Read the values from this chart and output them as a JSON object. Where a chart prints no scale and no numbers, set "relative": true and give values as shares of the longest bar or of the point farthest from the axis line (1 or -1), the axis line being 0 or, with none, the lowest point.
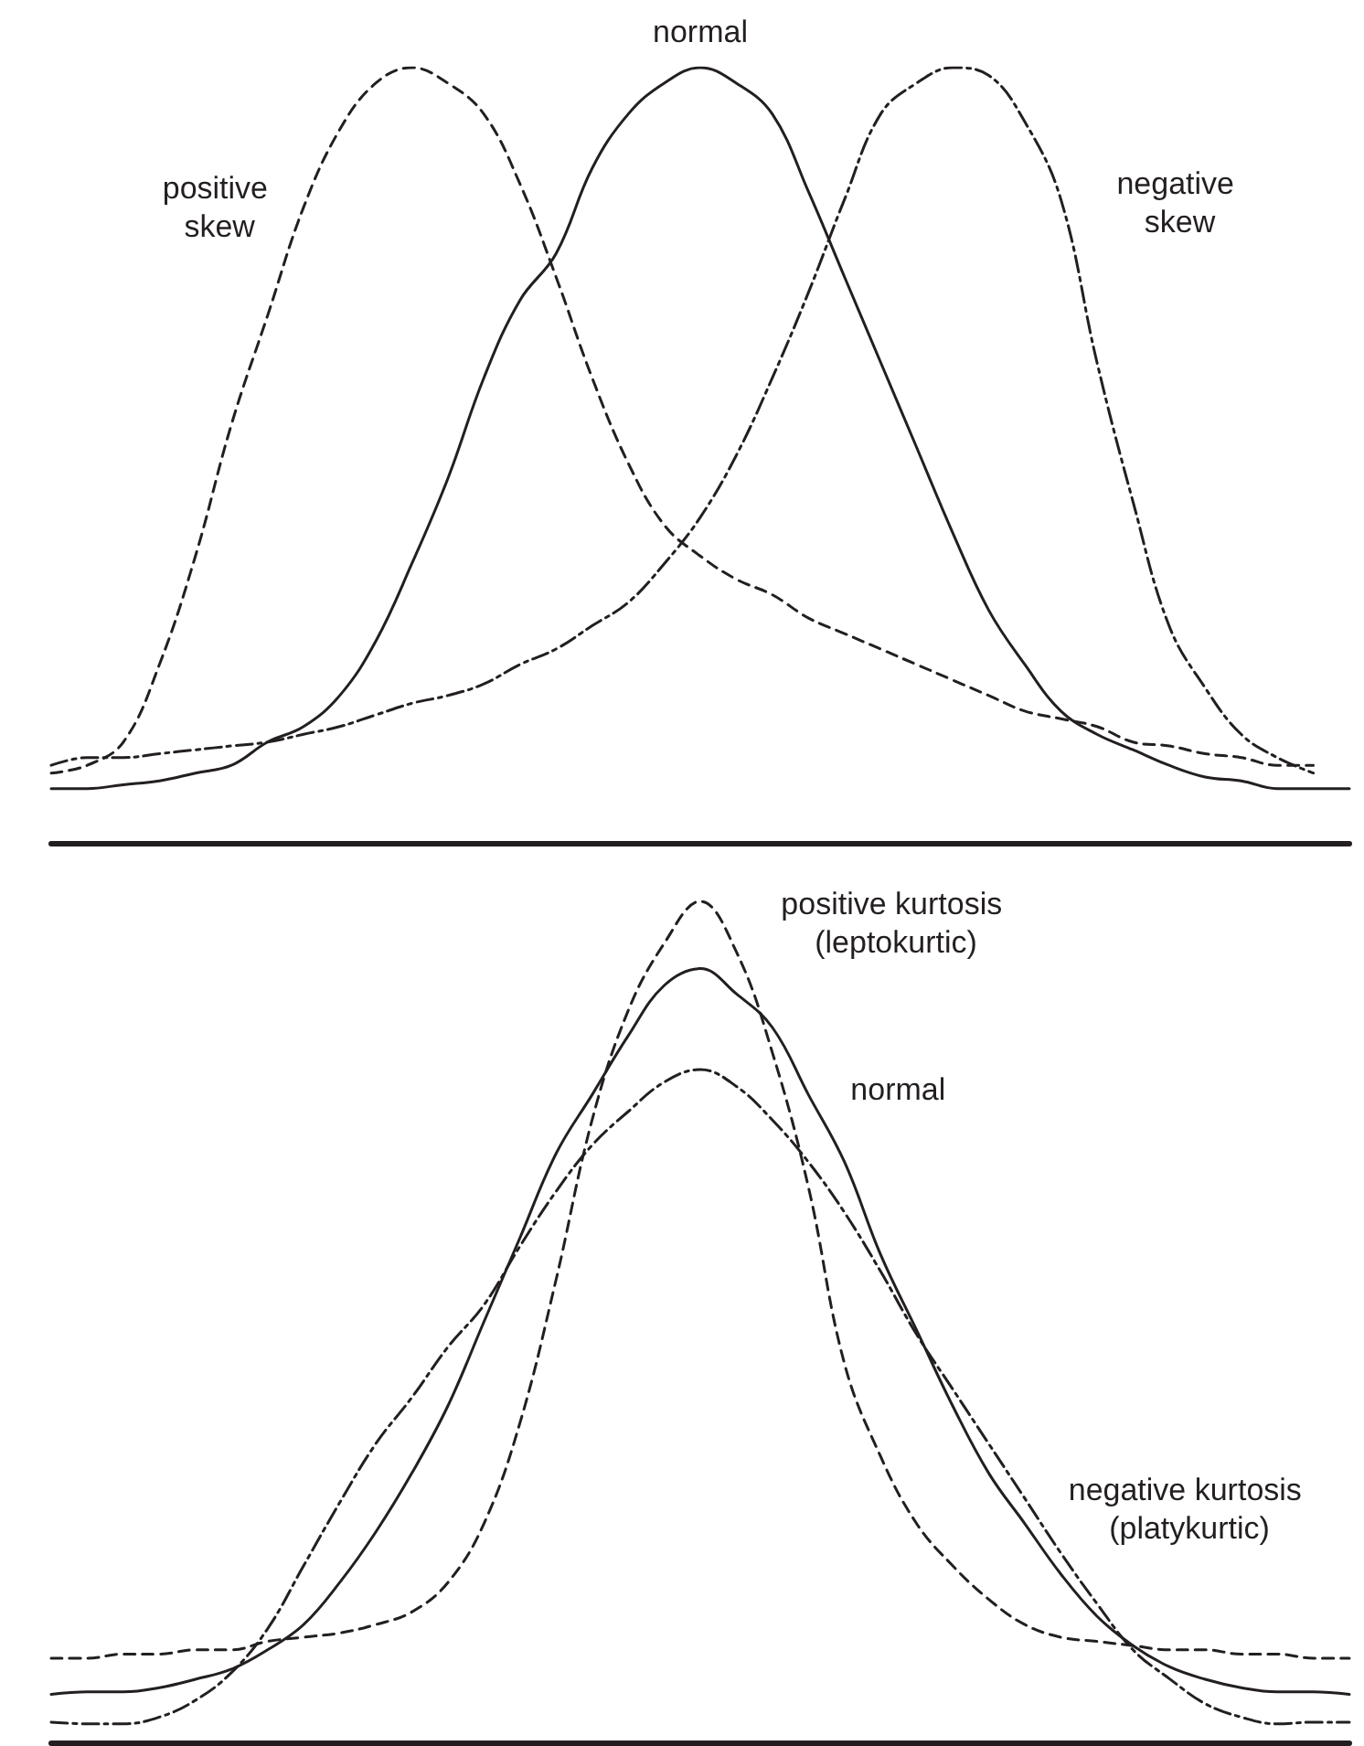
{
  "chart_data": [
    {
      "type": "line",
      "relative": true,
      "legend": false,
      "grid": false,
      "marker": "none",
      "tick_labels": false,
      "categories": [
        null,
        null,
        null,
        null,
        null,
        null,
        null,
        null,
        null,
        null,
        null,
        null,
        null,
        null,
        null,
        null,
        null,
        null,
        null,
        null,
        null,
        null,
        null,
        null,
        null,
        null,
        null,
        null,
        null,
        null,
        null,
        null,
        null,
        null,
        null,
        null,
        null
      ],
      "series": [
        {
          "name": "normal",
          "color": "#231f20",
          "line_style": "solid",
          "values": [
            0.07,
            0.07,
            0.075,
            0.08,
            0.09,
            0.1,
            0.13,
            0.15,
            0.19,
            0.26,
            0.36,
            0.47,
            0.6,
            0.7,
            0.76,
            0.87,
            0.94,
            0.98,
            1,
            0.98,
            0.94,
            0.84,
            0.73,
            0.62,
            0.51,
            0.4,
            0.3,
            0.23,
            0.17,
            0.14,
            0.12,
            0.1,
            0.085,
            0.08,
            0.07,
            0.07,
            0.07
          ]
        },
        {
          "name": "positive skew",
          "color": "#231f20",
          "line_style": "dashed",
          "values": [
            0.09,
            0.1,
            0.13,
            0.23,
            0.37,
            0.54,
            0.68,
            0.82,
            0.92,
            0.98,
            1,
            0.98,
            0.94,
            0.85,
            0.73,
            0.6,
            0.49,
            0.41,
            0.37,
            0.34,
            0.32,
            0.29,
            0.27,
            0.25,
            0.23,
            0.21,
            0.19,
            0.17,
            0.16,
            0.15,
            0.13,
            0.125,
            0.115,
            0.11,
            0.1,
            0.1,
            null
          ]
        },
        {
          "name": "negative skew",
          "color": "#231f20",
          "line_style": "dashdot",
          "values": [
            0.1,
            0.11,
            0.11,
            0.115,
            0.12,
            0.125,
            0.13,
            0.14,
            0.15,
            0.165,
            0.18,
            0.19,
            0.205,
            0.23,
            0.25,
            0.28,
            0.31,
            0.36,
            0.42,
            0.5,
            0.6,
            0.71,
            0.83,
            0.94,
            0.98,
            1,
            0.99,
            0.93,
            0.83,
            0.62,
            0.44,
            0.28,
            0.2,
            0.14,
            0.11,
            0.09,
            null
          ]
        }
      ]
    },
    {
      "type": "line",
      "relative": true,
      "legend": false,
      "grid": false,
      "marker": "none",
      "tick_labels": false,
      "categories": [
        null,
        null,
        null,
        null,
        null,
        null,
        null,
        null,
        null,
        null,
        null,
        null,
        null,
        null,
        null,
        null,
        null,
        null,
        null,
        null,
        null,
        null,
        null,
        null,
        null,
        null,
        null,
        null,
        null,
        null,
        null,
        null,
        null,
        null,
        null,
        null,
        null
      ],
      "series": [
        {
          "name": "normal",
          "color": "#231f20",
          "line_style": "solid",
          "values": [
            0.057,
            0.06,
            0.06,
            0.065,
            0.075,
            0.087,
            0.11,
            0.14,
            0.19,
            0.25,
            0.32,
            0.4,
            0.5,
            0.6,
            0.7,
            0.77,
            0.84,
            0.9,
            0.92,
            0.89,
            0.85,
            0.77,
            0.69,
            0.58,
            0.49,
            0.4,
            0.32,
            0.26,
            0.2,
            0.15,
            0.115,
            0.09,
            0.075,
            0.065,
            0.06,
            0.06,
            0.057
          ]
        },
        {
          "name": "positive kurtosis (leptokurtic)",
          "color": "#231f20",
          "line_style": "dashed",
          "values": [
            0.1,
            0.1,
            0.105,
            0.105,
            0.11,
            0.11,
            0.12,
            0.125,
            0.13,
            0.14,
            0.155,
            0.19,
            0.26,
            0.38,
            0.55,
            0.74,
            0.87,
            0.95,
            1,
            0.94,
            0.82,
            0.66,
            0.45,
            0.34,
            0.26,
            0.21,
            0.17,
            0.14,
            0.125,
            0.12,
            0.115,
            0.11,
            0.11,
            0.105,
            0.105,
            0.1,
            0.1
          ]
        },
        {
          "name": "negative kurtosis (platykurtic)",
          "color": "#231f20",
          "line_style": "dashdot",
          "values": [
            0.024,
            0.022,
            0.022,
            0.03,
            0.05,
            0.083,
            0.135,
            0.21,
            0.285,
            0.355,
            0.41,
            0.47,
            0.52,
            0.59,
            0.655,
            0.71,
            0.75,
            0.785,
            0.8,
            0.78,
            0.74,
            0.69,
            0.63,
            0.56,
            0.485,
            0.42,
            0.355,
            0.29,
            0.225,
            0.165,
            0.11,
            0.076,
            0.046,
            0.03,
            0.022,
            0.024,
            0.024
          ]
        }
      ]
    }
  ]
}
